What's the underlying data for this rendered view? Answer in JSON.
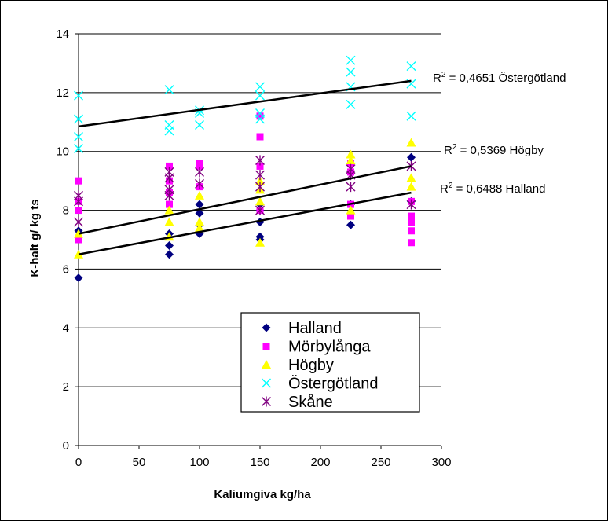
{
  "chart_data": {
    "type": "scatter",
    "title": "",
    "xlabel": "Kaliumgiva kg/ha",
    "ylabel": "K-halt g/ kg ts",
    "xlim": [
      0,
      300
    ],
    "ylim": [
      0,
      14
    ],
    "x_ticks": [
      "0",
      "50",
      "100",
      "150",
      "200",
      "250",
      "300"
    ],
    "y_ticks": [
      "0",
      "2",
      "4",
      "6",
      "8",
      "10",
      "12",
      "14"
    ],
    "grid": "horizontal",
    "legend_position": "lower-right inside plot",
    "series": [
      {
        "name": "Halland",
        "marker": "diamond",
        "color": "#000080",
        "points": [
          [
            0,
            5.7
          ],
          [
            0,
            7.3
          ],
          [
            75,
            6.5
          ],
          [
            75,
            6.8
          ],
          [
            75,
            7.2
          ],
          [
            100,
            7.2
          ],
          [
            100,
            7.5
          ],
          [
            100,
            7.9
          ],
          [
            100,
            8.2
          ],
          [
            150,
            7.0
          ],
          [
            150,
            7.1
          ],
          [
            150,
            7.6
          ],
          [
            150,
            8.0
          ],
          [
            150,
            8.2
          ],
          [
            225,
            7.5
          ],
          [
            225,
            8.2
          ],
          [
            275,
            8.3
          ],
          [
            275,
            9.8
          ]
        ]
      },
      {
        "name": "Mörbylånga",
        "marker": "square",
        "color": "#ff00ff",
        "points": [
          [
            0,
            7.0
          ],
          [
            0,
            8.0
          ],
          [
            0,
            8.3
          ],
          [
            0,
            9.0
          ],
          [
            75,
            8.2
          ],
          [
            75,
            8.6
          ],
          [
            75,
            9.0
          ],
          [
            75,
            9.5
          ],
          [
            100,
            8.8
          ],
          [
            100,
            9.5
          ],
          [
            100,
            9.6
          ],
          [
            150,
            8.0
          ],
          [
            150,
            9.5
          ],
          [
            150,
            10.5
          ],
          [
            150,
            11.2
          ],
          [
            225,
            7.8
          ],
          [
            225,
            8.2
          ],
          [
            225,
            9.3
          ],
          [
            225,
            9.6
          ],
          [
            275,
            6.9
          ],
          [
            275,
            7.3
          ],
          [
            275,
            7.6
          ],
          [
            275,
            7.8
          ],
          [
            275,
            8.3
          ]
        ]
      },
      {
        "name": "Högby",
        "marker": "triangle",
        "color": "#ffff00",
        "points": [
          [
            0,
            6.5
          ],
          [
            0,
            7.2
          ],
          [
            75,
            7.1
          ],
          [
            75,
            7.6
          ],
          [
            75,
            8.0
          ],
          [
            100,
            7.4
          ],
          [
            100,
            7.6
          ],
          [
            100,
            8.5
          ],
          [
            150,
            6.9
          ],
          [
            150,
            8.3
          ],
          [
            150,
            8.7
          ],
          [
            150,
            9.0
          ],
          [
            225,
            8.0
          ],
          [
            225,
            9.7
          ],
          [
            225,
            9.9
          ],
          [
            275,
            8.8
          ],
          [
            275,
            9.1
          ],
          [
            275,
            10.3
          ]
        ]
      },
      {
        "name": "Östergötland",
        "marker": "x",
        "color": "#00ffff",
        "points": [
          [
            0,
            10.1
          ],
          [
            0,
            10.5
          ],
          [
            0,
            11.1
          ],
          [
            0,
            11.9
          ],
          [
            75,
            10.7
          ],
          [
            75,
            10.9
          ],
          [
            75,
            12.1
          ],
          [
            100,
            10.9
          ],
          [
            100,
            11.3
          ],
          [
            100,
            11.4
          ],
          [
            150,
            11.1
          ],
          [
            150,
            11.3
          ],
          [
            150,
            11.9
          ],
          [
            150,
            12.2
          ],
          [
            225,
            11.6
          ],
          [
            225,
            12.2
          ],
          [
            225,
            12.7
          ],
          [
            225,
            13.1
          ],
          [
            275,
            11.2
          ],
          [
            275,
            12.3
          ],
          [
            275,
            12.9
          ]
        ]
      },
      {
        "name": "Skåne",
        "marker": "asterisk",
        "color": "#800080",
        "points": [
          [
            0,
            7.6
          ],
          [
            0,
            8.3
          ],
          [
            0,
            8.5
          ],
          [
            75,
            8.5
          ],
          [
            75,
            8.7
          ],
          [
            75,
            9.1
          ],
          [
            75,
            9.3
          ],
          [
            100,
            8.9
          ],
          [
            100,
            9.3
          ],
          [
            150,
            8.0
          ],
          [
            150,
            8.8
          ],
          [
            150,
            9.2
          ],
          [
            150,
            9.7
          ],
          [
            225,
            8.8
          ],
          [
            225,
            9.2
          ],
          [
            225,
            9.4
          ],
          [
            275,
            8.2
          ],
          [
            275,
            9.5
          ]
        ]
      }
    ],
    "trendlines": [
      {
        "series": "Östergötland",
        "x": [
          0,
          275
        ],
        "y": [
          10.85,
          12.4
        ],
        "label": "R² = 0,4651 Östergötland"
      },
      {
        "series": "Högby",
        "x": [
          0,
          275
        ],
        "y": [
          7.2,
          9.5
        ],
        "label": "R² = 0,5369 Högby"
      },
      {
        "series": "Halland",
        "x": [
          0,
          275
        ],
        "y": [
          6.5,
          8.6
        ],
        "label": "R² = 0,6488 Halland"
      }
    ]
  }
}
